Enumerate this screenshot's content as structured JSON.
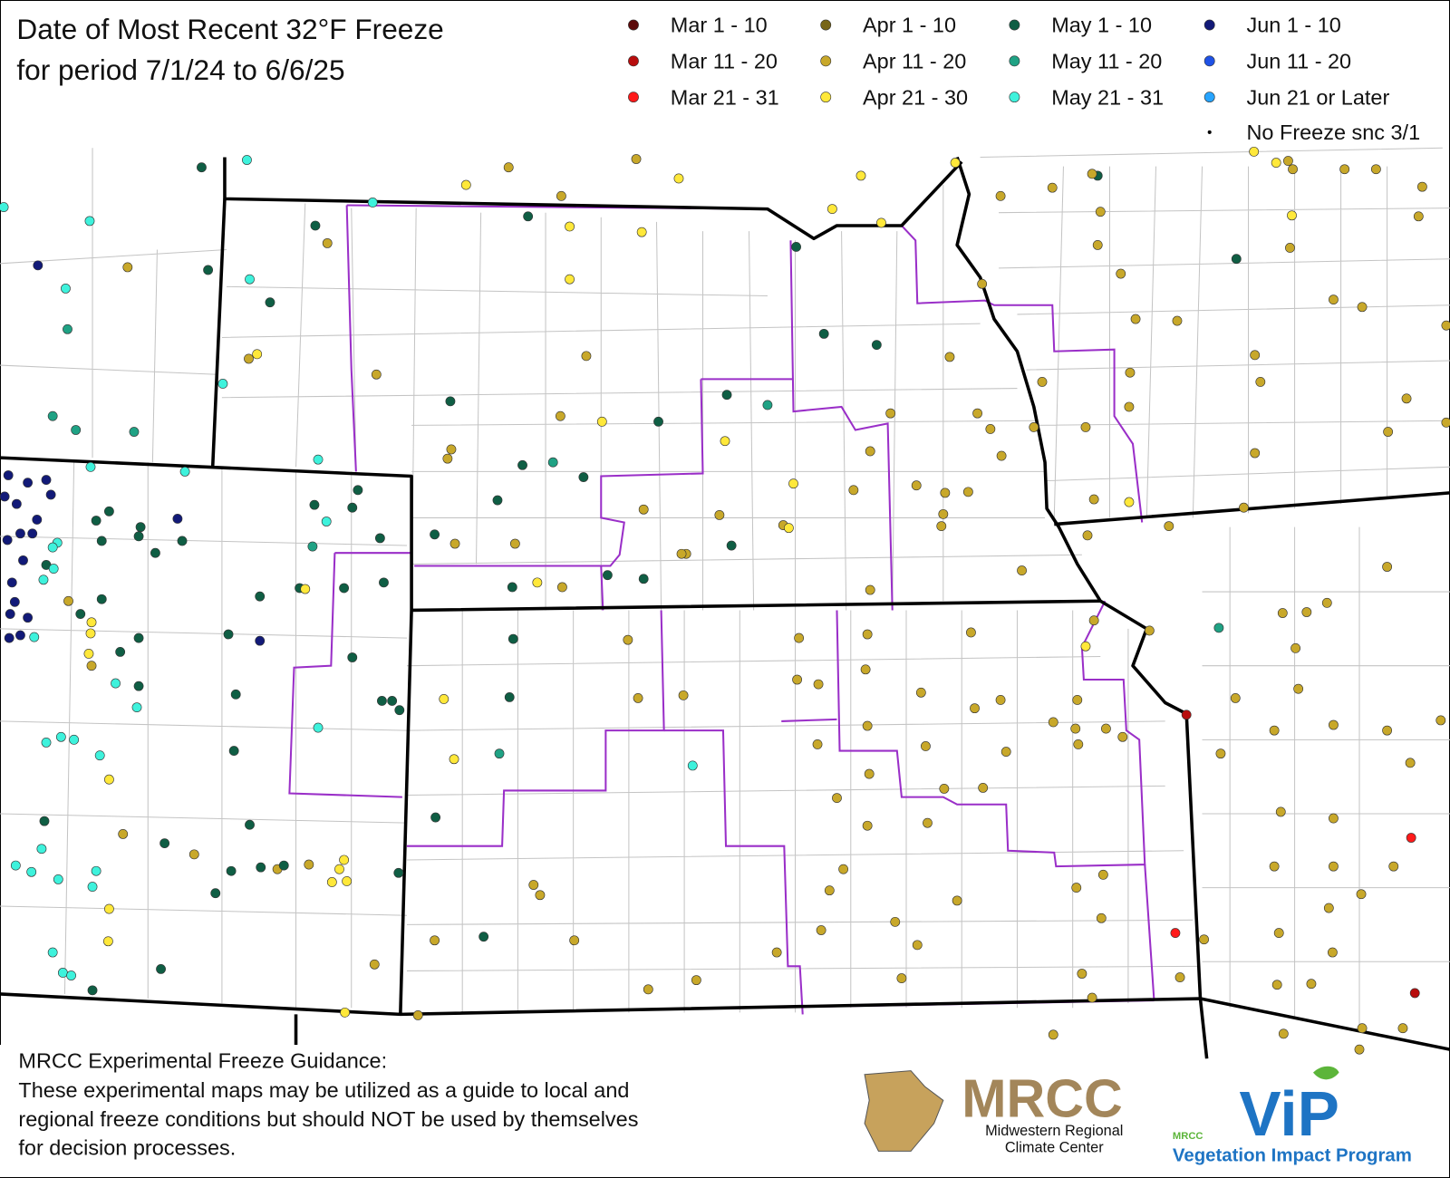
{
  "header": {
    "title_line1": "Date of Most Recent 32°F Freeze",
    "title_line2": "for period 7/1/24 to 6/6/25"
  },
  "legend": [
    {
      "label": "Mar 1 - 10",
      "color": "#5c0a0a"
    },
    {
      "label": "Mar 11 - 20",
      "color": "#b80d0d"
    },
    {
      "label": "Mar 21 - 31",
      "color": "#ff1a1a"
    },
    {
      "label": "Apr 1 - 10",
      "color": "#776518"
    },
    {
      "label": "Apr 11 - 20",
      "color": "#c8a82a"
    },
    {
      "label": "Apr 21 - 30",
      "color": "#ffe83a"
    },
    {
      "label": "May 1 - 10",
      "color": "#0f5e44"
    },
    {
      "label": "May 11 - 20",
      "color": "#1fa284"
    },
    {
      "label": "May 21 - 31",
      "color": "#3ef2dc"
    },
    {
      "label": "Jun 1 - 10",
      "color": "#121a78"
    },
    {
      "label": "Jun 11 - 20",
      "color": "#1f52e6"
    },
    {
      "label": "Jun 21 or Later",
      "color": "#27a4ff"
    },
    {
      "label": "No Freeze snc 3/1",
      "color": "#000000"
    }
  ],
  "footer": {
    "heading": "MRCC Experimental Freeze Guidance:",
    "lines": [
      "These experimental maps may be utilized as a guide to local and",
      "regional freeze conditions but should NOT be used by themselves",
      "for decision processes."
    ]
  },
  "logos": {
    "mrcc": "MRCC",
    "mrcc_sub1": "Midwestern Regional",
    "mrcc_sub2": "Climate Center",
    "vip": "ViP",
    "vip_small": "MRCC",
    "vip_sub": "Vegetation Impact Program"
  }
}
